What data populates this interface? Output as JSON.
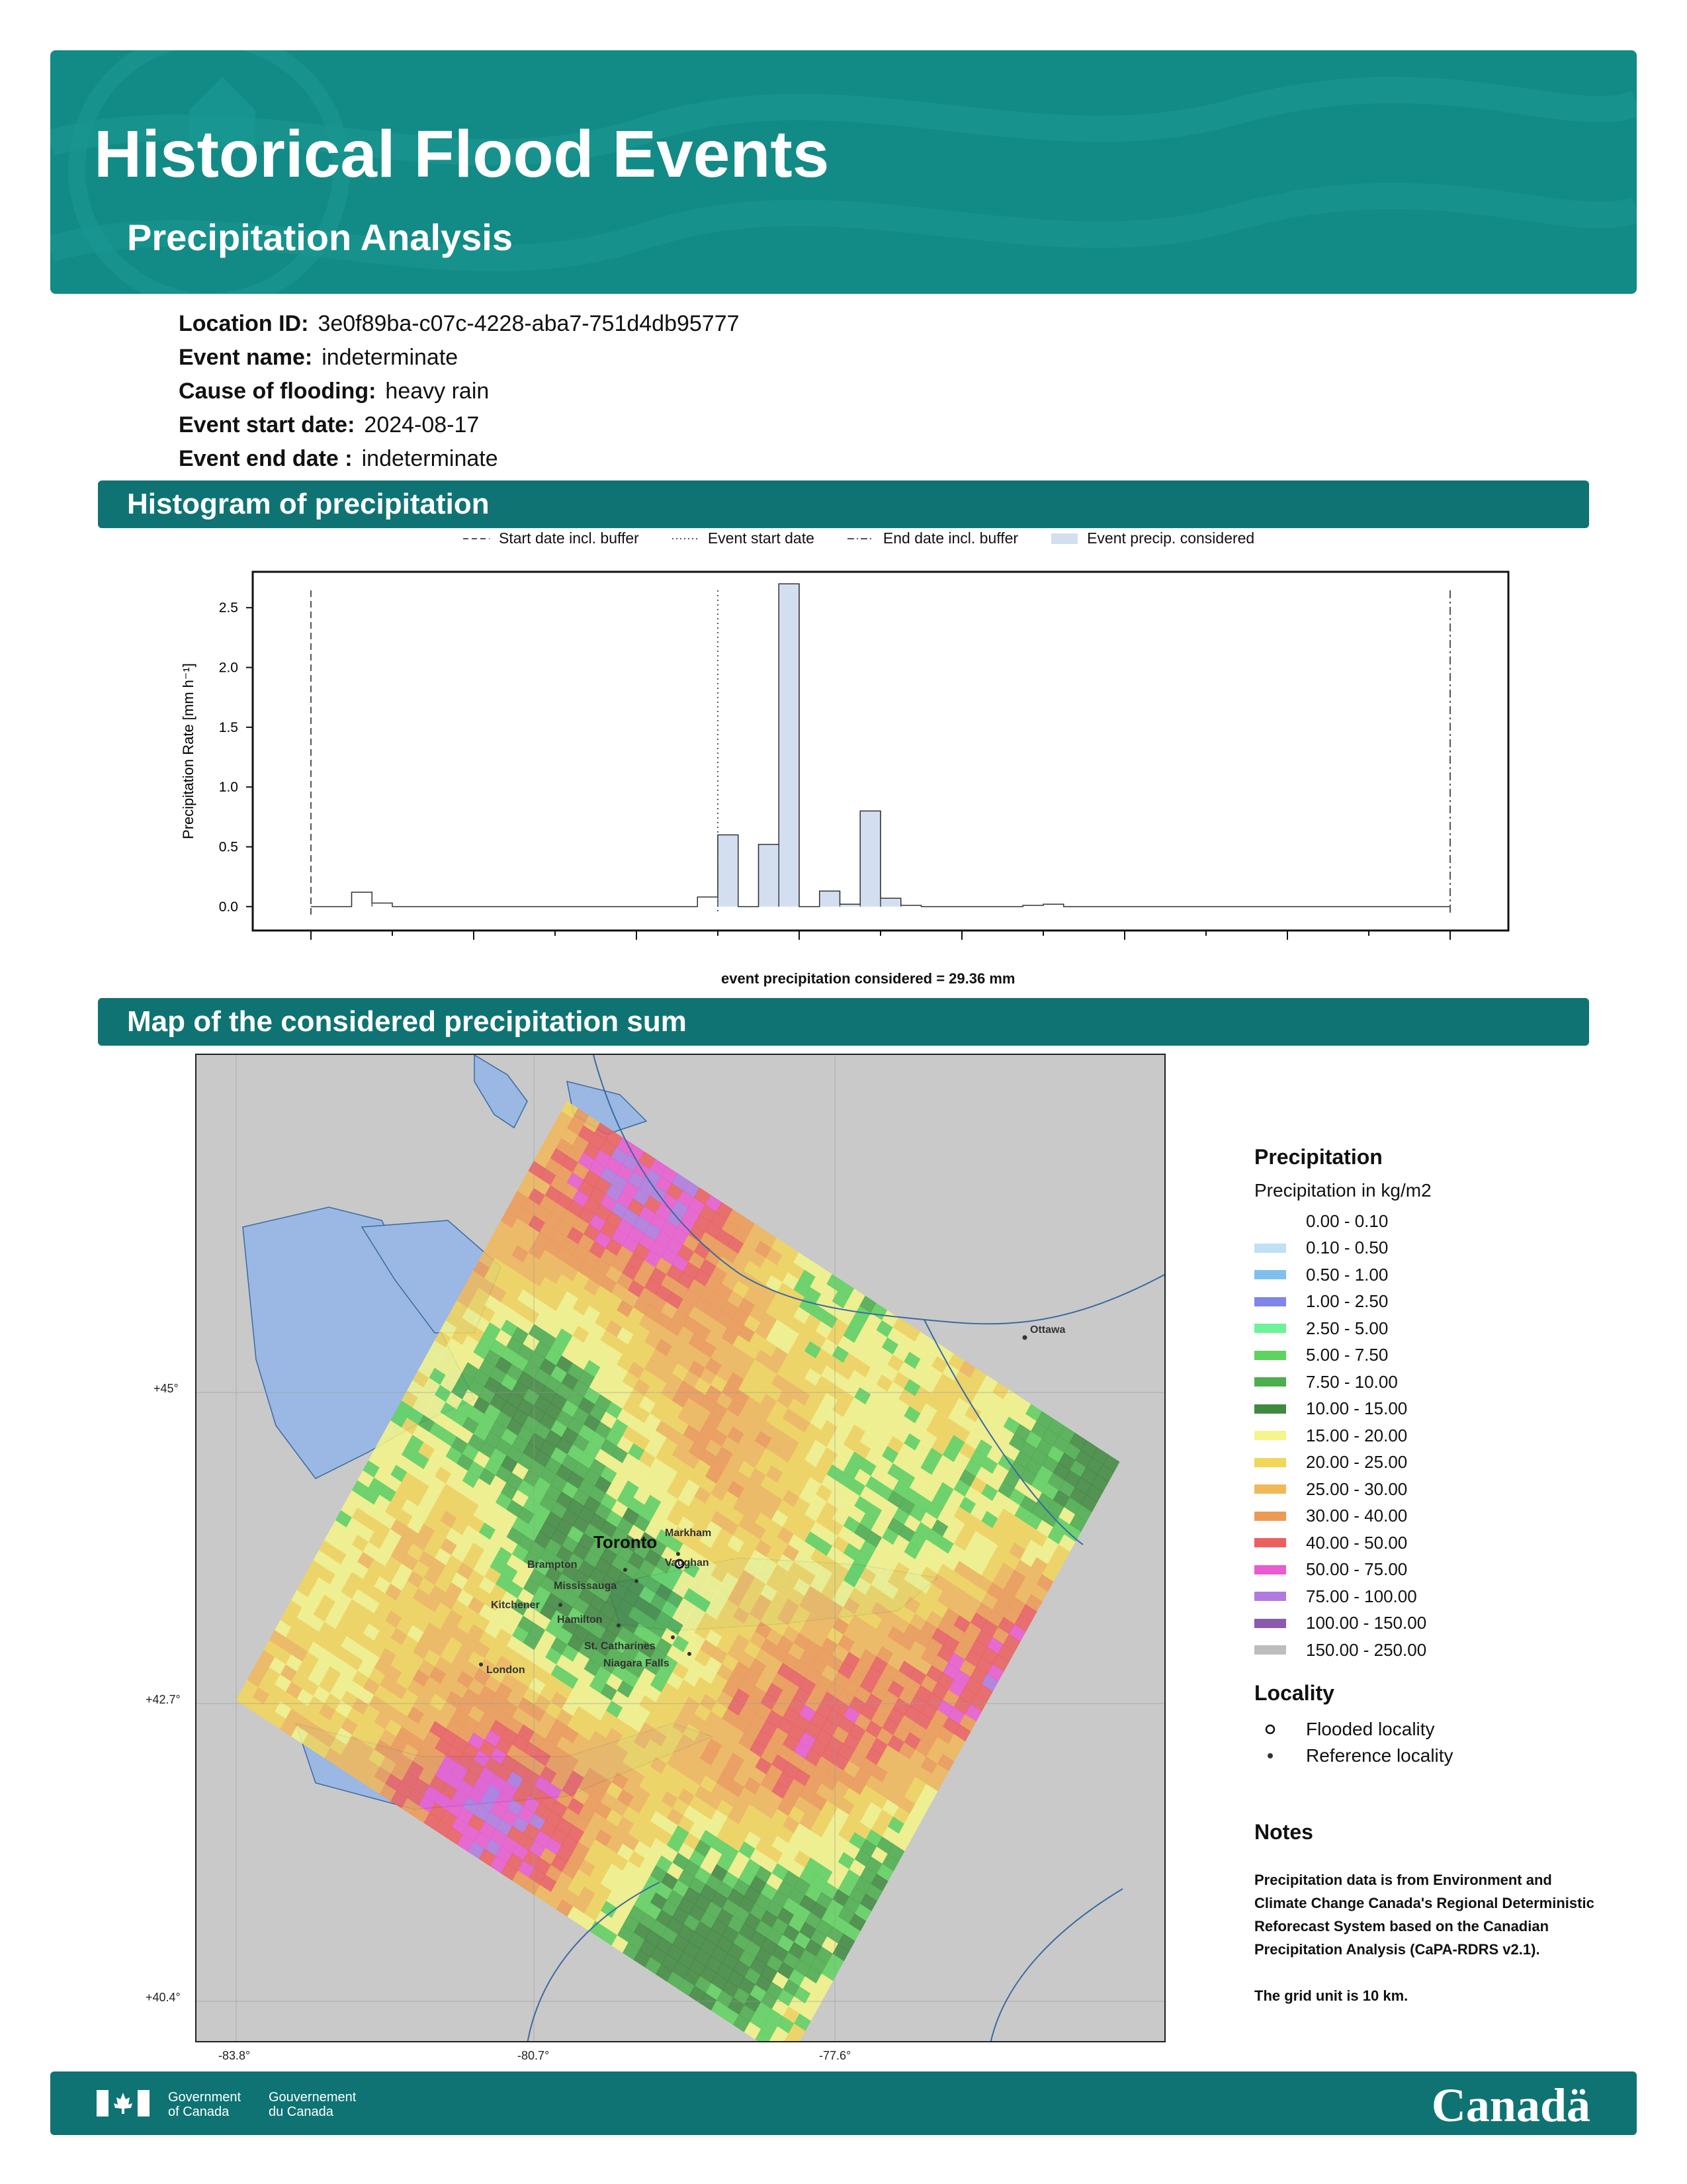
{
  "header": {
    "title": "Historical Flood Events",
    "subtitle": "Precipitation Analysis"
  },
  "info": [
    {
      "label": "Location ID:",
      "value": "3e0f89ba-c07c-4228-aba7-751d4db95777"
    },
    {
      "label": "Event name:",
      "value": "indeterminate"
    },
    {
      "label": "Cause of flooding:",
      "value": "heavy rain"
    },
    {
      "label": "Event start date:",
      "value": "2024-08-17"
    },
    {
      "label": "Event end date :",
      "value": "indeterminate"
    }
  ],
  "sections": {
    "histogram": "Histogram of precipitation",
    "map": "Map of the considered precipitation sum"
  },
  "chart_data": {
    "type": "bar",
    "ylabel": "Precipitation Rate [mm h⁻¹]",
    "ylim": [
      -0.2,
      2.8
    ],
    "yticks": [
      "0.0",
      "0.5",
      "1.0",
      "1.5",
      "2.0",
      "2.5"
    ],
    "legend": [
      "Start date incl. buffer",
      "Event start date",
      "End date incl. buffer",
      "Event precip. considered"
    ],
    "x": [
      0,
      1,
      2,
      3,
      4,
      5,
      6,
      7,
      8,
      9,
      10,
      11,
      12,
      13,
      14,
      15,
      16,
      17,
      18,
      19,
      20,
      21,
      22,
      23,
      24,
      25,
      26,
      27,
      28,
      29,
      30,
      31,
      32,
      33,
      34,
      35,
      36,
      37,
      38,
      39,
      40,
      41,
      42,
      43,
      44,
      45,
      46,
      47,
      48,
      49,
      50,
      51,
      52,
      53,
      54,
      55
    ],
    "values": [
      0,
      0,
      0.12,
      0.03,
      0,
      0,
      0,
      0,
      0,
      0,
      0,
      0,
      0,
      0,
      0,
      0,
      0,
      0,
      0,
      0.08,
      0.6,
      0,
      0.52,
      2.7,
      0,
      0.13,
      0.02,
      0.8,
      0.07,
      0.01,
      0,
      0,
      0,
      0,
      0,
      0.01,
      0.02,
      0,
      0,
      0,
      0,
      0,
      0,
      0,
      0,
      0,
      0,
      0,
      0,
      0,
      0,
      0,
      0,
      0,
      0,
      0
    ],
    "start_buffer_x": 0,
    "event_start_x": 20,
    "end_buffer_x": 56,
    "considered_range": [
      20,
      29
    ],
    "caption": "event precipitation considered = 29.36 mm"
  },
  "map": {
    "lat_labels": [
      "+45°",
      "+42.7°",
      "+40.4°"
    ],
    "lon_labels": [
      "-83.8°",
      "-80.7°",
      "-77.6°"
    ],
    "places": [
      "Ottawa",
      "Toronto",
      "Markham",
      "Vaughan",
      "Brampton",
      "Mississauga",
      "Kitchener",
      "Hamilton",
      "St. Catharines",
      "Niagara Falls",
      "London"
    ]
  },
  "legend": {
    "title": "Precipitation",
    "subtitle": "Precipitation in kg/m2",
    "items": [
      {
        "label": "0.00 - 0.10",
        "color": "#ffffff"
      },
      {
        "label": "0.10 - 0.50",
        "color": "#bfe0f5"
      },
      {
        "label": "0.50 - 1.00",
        "color": "#7fc0ee"
      },
      {
        "label": "1.00 - 2.50",
        "color": "#7f86e8"
      },
      {
        "label": "2.50 - 5.00",
        "color": "#6ef29a"
      },
      {
        "label": "5.00 - 7.50",
        "color": "#5fd35f"
      },
      {
        "label": "7.50 - 10.00",
        "color": "#4cae4c"
      },
      {
        "label": "10.00 - 15.00",
        "color": "#3f8a3f"
      },
      {
        "label": "15.00 - 20.00",
        "color": "#f4f58a"
      },
      {
        "label": "20.00 - 25.00",
        "color": "#f2d65a"
      },
      {
        "label": "25.00 - 30.00",
        "color": "#f1b85a"
      },
      {
        "label": "30.00 - 40.00",
        "color": "#ee9a55"
      },
      {
        "label": "40.00 - 50.00",
        "color": "#ec5f5f"
      },
      {
        "label": "50.00 - 75.00",
        "color": "#ea5ad0"
      },
      {
        "label": "75.00 - 100.00",
        "color": "#b07ae0"
      },
      {
        "label": "100.00 - 150.00",
        "color": "#8a5aae"
      },
      {
        "label": "150.00 - 250.00",
        "color": "#bdbdbd"
      }
    ],
    "locality_title": "Locality",
    "flooded": "Flooded locality",
    "reference": "Reference locality"
  },
  "notes": {
    "title": "Notes",
    "text1": "Precipitation data is from Environment and Climate Change Canada's Regional Deterministic Reforecast System based on the Canadian Precipitation Analysis (CaPA-RDRS v2.1).",
    "text2": "The grid unit is 10 km."
  },
  "footer": {
    "gov_en_1": "Government",
    "gov_en_2": "of Canada",
    "gov_fr_1": "Gouvernement",
    "gov_fr_2": "du Canada",
    "wordmark": "Canadä"
  }
}
